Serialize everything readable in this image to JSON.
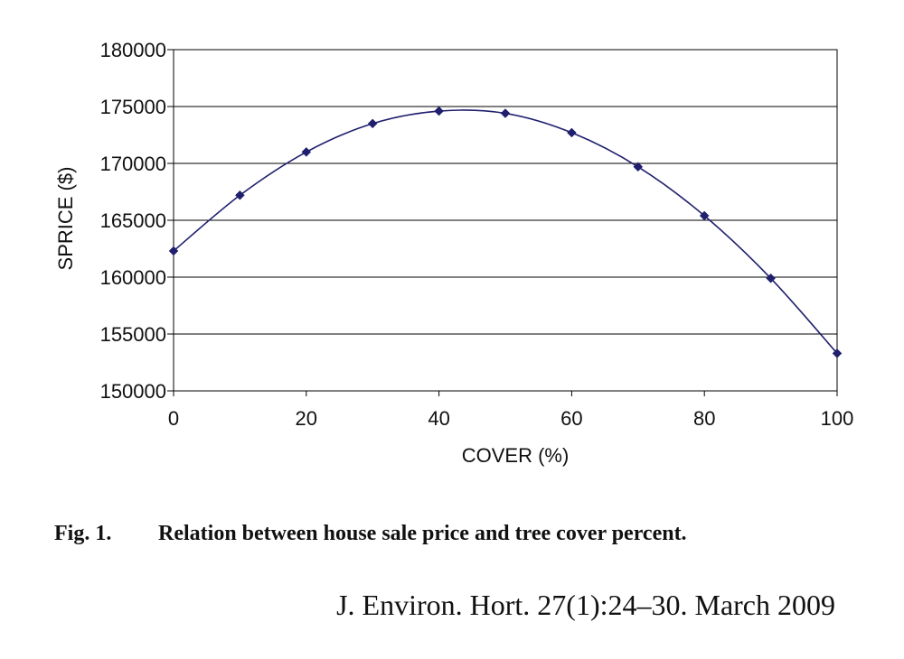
{
  "chart_data": {
    "type": "line",
    "xlabel": "COVER (%)",
    "ylabel": "SPRICE ($)",
    "xlim": [
      0,
      100
    ],
    "ylim": [
      150000,
      180000
    ],
    "x_ticks": [
      0,
      20,
      40,
      60,
      80,
      100
    ],
    "x_tick_labels": [
      "0",
      "20",
      "40",
      "60",
      "80",
      "100"
    ],
    "y_ticks": [
      150000,
      155000,
      160000,
      165000,
      170000,
      175000,
      180000
    ],
    "y_tick_labels": [
      "150000",
      "155000",
      "160000",
      "165000",
      "170000",
      "175000",
      "180000"
    ],
    "grid": "horizontal",
    "legend": "none",
    "series": [
      {
        "x": [
          0,
          10,
          20,
          30,
          40,
          50,
          60,
          70,
          80,
          90,
          100
        ],
        "values": [
          162300,
          167200,
          171000,
          173500,
          174600,
          174400,
          172700,
          169700,
          165400,
          159900,
          153300
        ],
        "color": "#1f1f6e",
        "marker": "diamond",
        "smooth": true
      }
    ]
  },
  "caption": {
    "fig_number": "Fig. 1.",
    "text": "Relation between house sale price and tree cover percent."
  },
  "citation": "J. Environ. Hort. 27(1):24–30. March 2009"
}
